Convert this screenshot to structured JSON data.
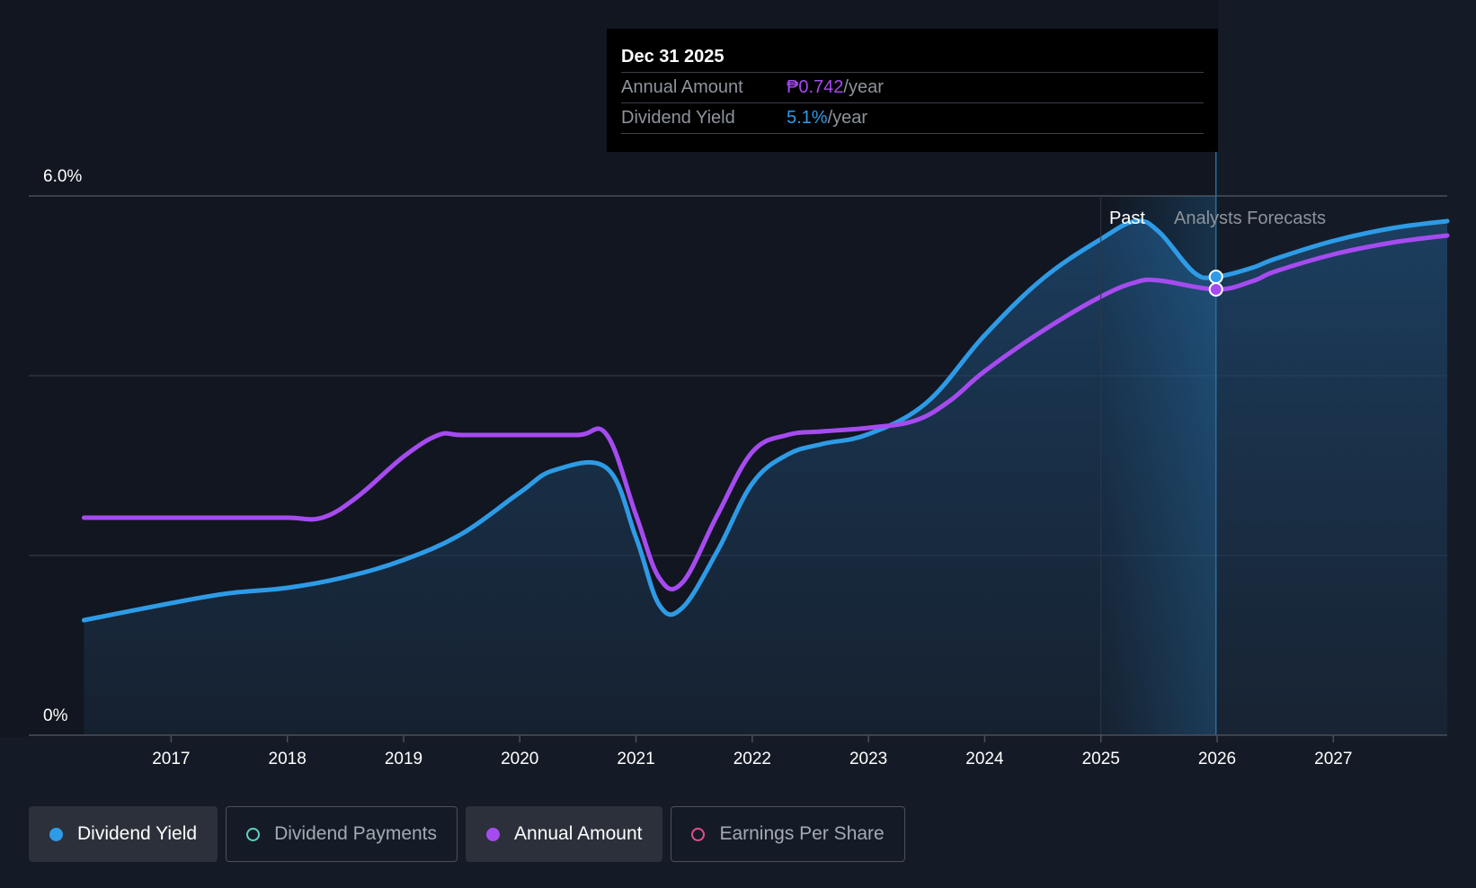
{
  "tooltip": {
    "date": "Dec 31 2025",
    "rows": [
      {
        "label": "Annual Amount",
        "value": "₱0.742",
        "unit": "/year",
        "color": "#a64bf0"
      },
      {
        "label": "Dividend Yield",
        "value": "5.1%",
        "unit": "/year",
        "color": "#2e9be6"
      }
    ]
  },
  "zones": {
    "past_label": "Past",
    "forecast_label": "Analysts Forecasts"
  },
  "legend": [
    {
      "label": "Dividend Yield",
      "active": true,
      "filled": true,
      "color": "#2e9be6"
    },
    {
      "label": "Dividend Payments",
      "active": false,
      "filled": false,
      "color": "#5fd1c4"
    },
    {
      "label": "Annual Amount",
      "active": true,
      "filled": true,
      "color": "#a64bf0"
    },
    {
      "label": "Earnings Per Share",
      "active": false,
      "filled": false,
      "color": "#e0508a"
    }
  ],
  "chart_data": {
    "type": "line",
    "title": "",
    "xlabel": "",
    "ylabel": "",
    "x_ticks": [
      "2017",
      "2018",
      "2019",
      "2020",
      "2021",
      "2022",
      "2023",
      "2024",
      "2025",
      "2026",
      "2027"
    ],
    "y_tick_labels": [
      "0%",
      "6.0%"
    ],
    "ylim": [
      0,
      6.0
    ],
    "xlim": [
      2016.27,
      2027.98
    ],
    "grid": true,
    "highlight_x": 2025.99,
    "past_forecast_split": 2025.99,
    "series": [
      {
        "name": "Dividend Yield",
        "color": "#2e9be6",
        "fill": true,
        "points": [
          [
            2016.25,
            1.28
          ],
          [
            2017.0,
            1.47
          ],
          [
            2017.5,
            1.58
          ],
          [
            2018.0,
            1.64
          ],
          [
            2018.5,
            1.76
          ],
          [
            2019.0,
            1.95
          ],
          [
            2019.5,
            2.24
          ],
          [
            2020.0,
            2.7
          ],
          [
            2020.3,
            2.95
          ],
          [
            2020.75,
            2.97
          ],
          [
            2021.0,
            2.2
          ],
          [
            2021.2,
            1.45
          ],
          [
            2021.4,
            1.42
          ],
          [
            2021.7,
            2.05
          ],
          [
            2022.0,
            2.8
          ],
          [
            2022.3,
            3.12
          ],
          [
            2022.6,
            3.24
          ],
          [
            2023.0,
            3.35
          ],
          [
            2023.5,
            3.7
          ],
          [
            2024.0,
            4.45
          ],
          [
            2024.5,
            5.08
          ],
          [
            2025.0,
            5.52
          ],
          [
            2025.3,
            5.72
          ],
          [
            2025.5,
            5.6
          ],
          [
            2025.8,
            5.15
          ],
          [
            2025.99,
            5.1
          ],
          [
            2026.3,
            5.2
          ],
          [
            2026.5,
            5.3
          ],
          [
            2027.0,
            5.5
          ],
          [
            2027.5,
            5.64
          ],
          [
            2027.98,
            5.72
          ]
        ]
      },
      {
        "name": "Annual Amount",
        "color": "#a64bf0",
        "fill": false,
        "points": [
          [
            2016.25,
            2.42
          ],
          [
            2017.0,
            2.42
          ],
          [
            2017.5,
            2.42
          ],
          [
            2018.0,
            2.42
          ],
          [
            2018.3,
            2.42
          ],
          [
            2018.6,
            2.65
          ],
          [
            2019.0,
            3.1
          ],
          [
            2019.3,
            3.34
          ],
          [
            2019.5,
            3.34
          ],
          [
            2020.0,
            3.34
          ],
          [
            2020.5,
            3.34
          ],
          [
            2020.75,
            3.34
          ],
          [
            2021.0,
            2.45
          ],
          [
            2021.2,
            1.75
          ],
          [
            2021.4,
            1.7
          ],
          [
            2021.7,
            2.45
          ],
          [
            2022.0,
            3.15
          ],
          [
            2022.3,
            3.34
          ],
          [
            2022.6,
            3.38
          ],
          [
            2023.0,
            3.42
          ],
          [
            2023.4,
            3.5
          ],
          [
            2023.7,
            3.72
          ],
          [
            2024.0,
            4.05
          ],
          [
            2024.5,
            4.5
          ],
          [
            2025.0,
            4.88
          ],
          [
            2025.3,
            5.04
          ],
          [
            2025.5,
            5.06
          ],
          [
            2025.99,
            4.96
          ],
          [
            2026.3,
            5.05
          ],
          [
            2026.5,
            5.16
          ],
          [
            2027.0,
            5.35
          ],
          [
            2027.5,
            5.48
          ],
          [
            2027.98,
            5.56
          ]
        ]
      }
    ]
  }
}
